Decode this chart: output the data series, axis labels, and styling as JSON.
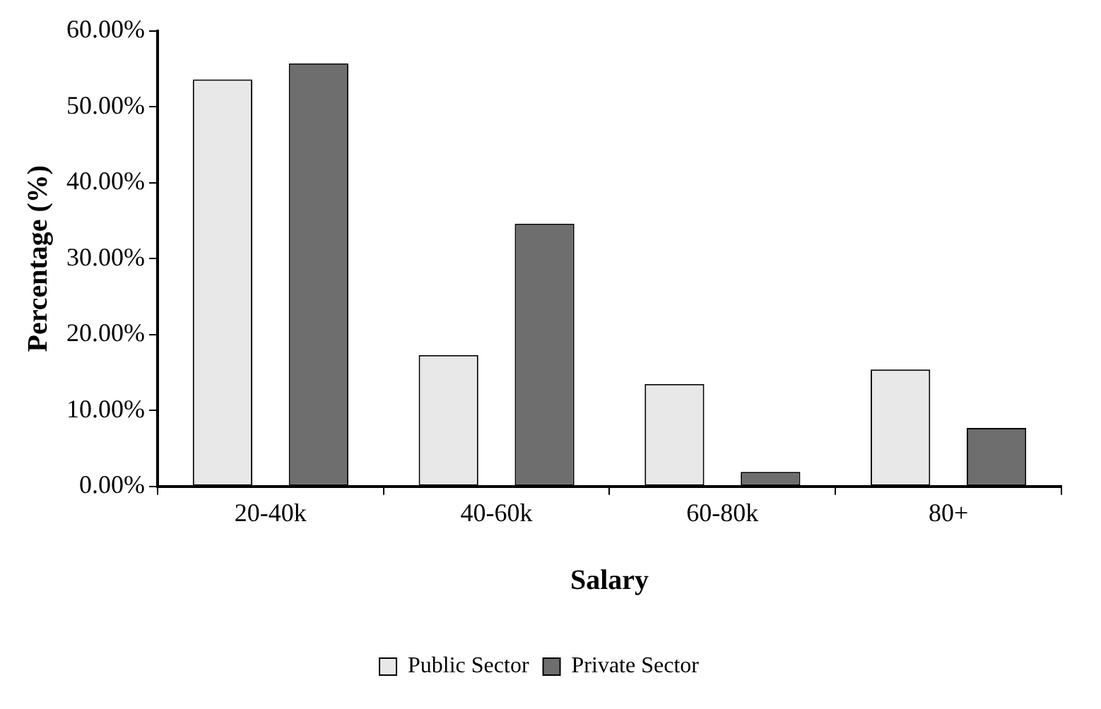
{
  "chart_data": {
    "type": "bar",
    "xlabel": "Salary",
    "ylabel": "Percentage (%)",
    "categories": [
      "20-40k",
      "40-60k",
      "60-80k",
      "80+"
    ],
    "series": [
      {
        "name": "Public Sector",
        "color": "#e8e8e8",
        "values": [
          53.6,
          17.3,
          13.5,
          15.4
        ]
      },
      {
        "name": "Private Sector",
        "color": "#6e6e6e",
        "values": [
          55.7,
          34.6,
          1.9,
          7.7
        ]
      }
    ],
    "ylim": [
      0,
      60
    ],
    "yticks": [
      {
        "value": 0,
        "label": "0.00%"
      },
      {
        "value": 10,
        "label": "10.00%"
      },
      {
        "value": 20,
        "label": "20.00%"
      },
      {
        "value": 30,
        "label": "30.00%"
      },
      {
        "value": 40,
        "label": "40.00%"
      },
      {
        "value": 50,
        "label": "50.00%"
      },
      {
        "value": 60,
        "label": "60.00%"
      }
    ],
    "grid": false,
    "legend": "bottom"
  }
}
